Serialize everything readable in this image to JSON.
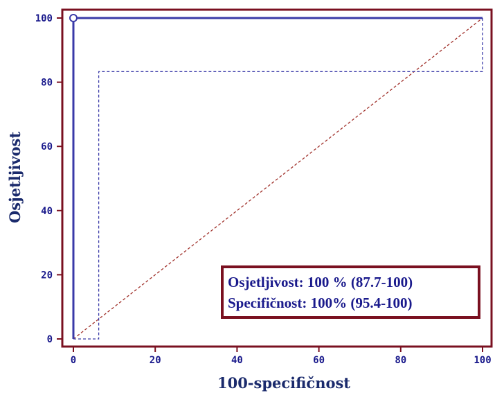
{
  "chart_data": {
    "type": "line",
    "xlabel": "100-specifičnost",
    "ylabel": "Osjetljivost",
    "xlim": [
      0,
      100
    ],
    "ylim": [
      0,
      100
    ],
    "x_ticks": [
      0,
      20,
      40,
      60,
      80,
      100
    ],
    "y_ticks": [
      0,
      20,
      40,
      60,
      80,
      100
    ],
    "grid": false,
    "series": [
      {
        "role": "roc-curve",
        "style": "solid",
        "color": "#3a3aa8",
        "points": [
          [
            0,
            0
          ],
          [
            0,
            100
          ],
          [
            100,
            100
          ]
        ]
      },
      {
        "role": "confidence-bound",
        "style": "dashed",
        "color": "#3a3aa8",
        "points": [
          [
            0,
            0
          ],
          [
            6.2,
            0
          ],
          [
            6.2,
            83.3
          ],
          [
            100,
            83.3
          ],
          [
            100,
            100
          ]
        ]
      },
      {
        "role": "reference-diagonal",
        "style": "dashed",
        "color": "#a0302a",
        "points": [
          [
            0,
            0
          ],
          [
            100,
            100
          ]
        ]
      }
    ],
    "marker": {
      "x": 0,
      "y": 100,
      "shape": "open-circle"
    },
    "annotation": {
      "line1": "Osjetljivost: 100 % (87.7-100)",
      "line2": "Specifičnost: 100% (95.4-100)"
    },
    "colors": {
      "frame": "#7a1020",
      "ticks": "#1a1a8c",
      "axis_title": "#1a2a6c"
    }
  }
}
